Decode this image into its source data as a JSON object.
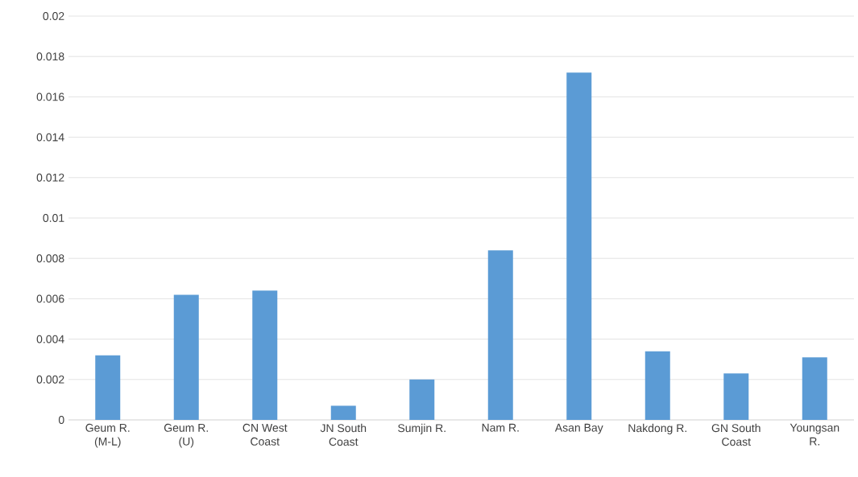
{
  "chart_data": {
    "type": "bar",
    "categories": [
      "Geum R. (M-L)",
      "Geum R. (U)",
      "CN West Coast",
      "JN South Coast",
      "Sumjin R.",
      "Nam R.",
      "Asan Bay",
      "Nakdong R.",
      "GN South Coast",
      "Youngsan R."
    ],
    "values": [
      0.0032,
      0.0062,
      0.0064,
      0.0007,
      0.002,
      0.0084,
      0.0172,
      0.0034,
      0.0023,
      0.0031
    ],
    "color": "#5b9bd5",
    "ylim": [
      0,
      0.02
    ],
    "yticks": [
      0,
      0.002,
      0.004,
      0.006,
      0.008,
      0.01,
      0.012,
      0.014,
      0.016,
      0.018,
      0.02
    ],
    "grid": "y"
  }
}
